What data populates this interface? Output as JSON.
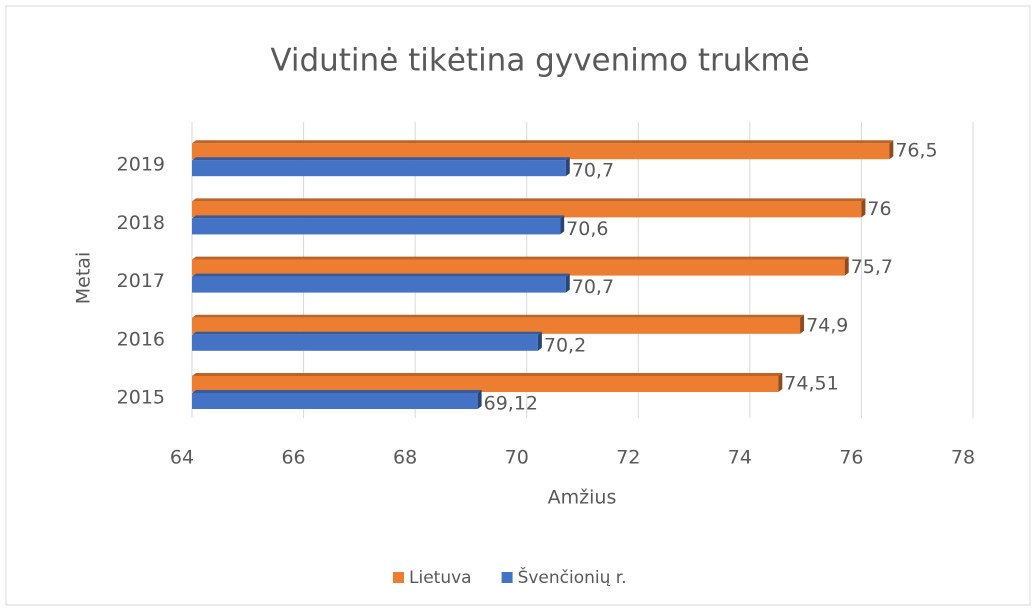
{
  "chart_data": {
    "type": "hbar",
    "title": "Vidutinė tikėtina gyvenimo trukmė",
    "categories": [
      "2015",
      "2016",
      "2017",
      "2018",
      "2019"
    ],
    "series": [
      {
        "name": "Lietuva",
        "color": "#ed7d31",
        "values": [
          74.51,
          74.9,
          75.7,
          76,
          76.5
        ],
        "value_labels": [
          "74,51",
          "74,9",
          "75,7",
          "76",
          "76,5"
        ]
      },
      {
        "name": "Švenčionių r.",
        "color": "#4472c4",
        "values": [
          69.12,
          70.2,
          70.7,
          70.6,
          70.7
        ],
        "value_labels": [
          "69,12",
          "70,2",
          "70,7",
          "70,6",
          "70,7"
        ]
      }
    ],
    "xlabel": "Amžius",
    "ylabel": "Metai",
    "xlim": [
      64,
      78
    ],
    "xticks": [
      64,
      66,
      68,
      70,
      72,
      74,
      76,
      78
    ],
    "grid": true,
    "legend": "bottom"
  }
}
